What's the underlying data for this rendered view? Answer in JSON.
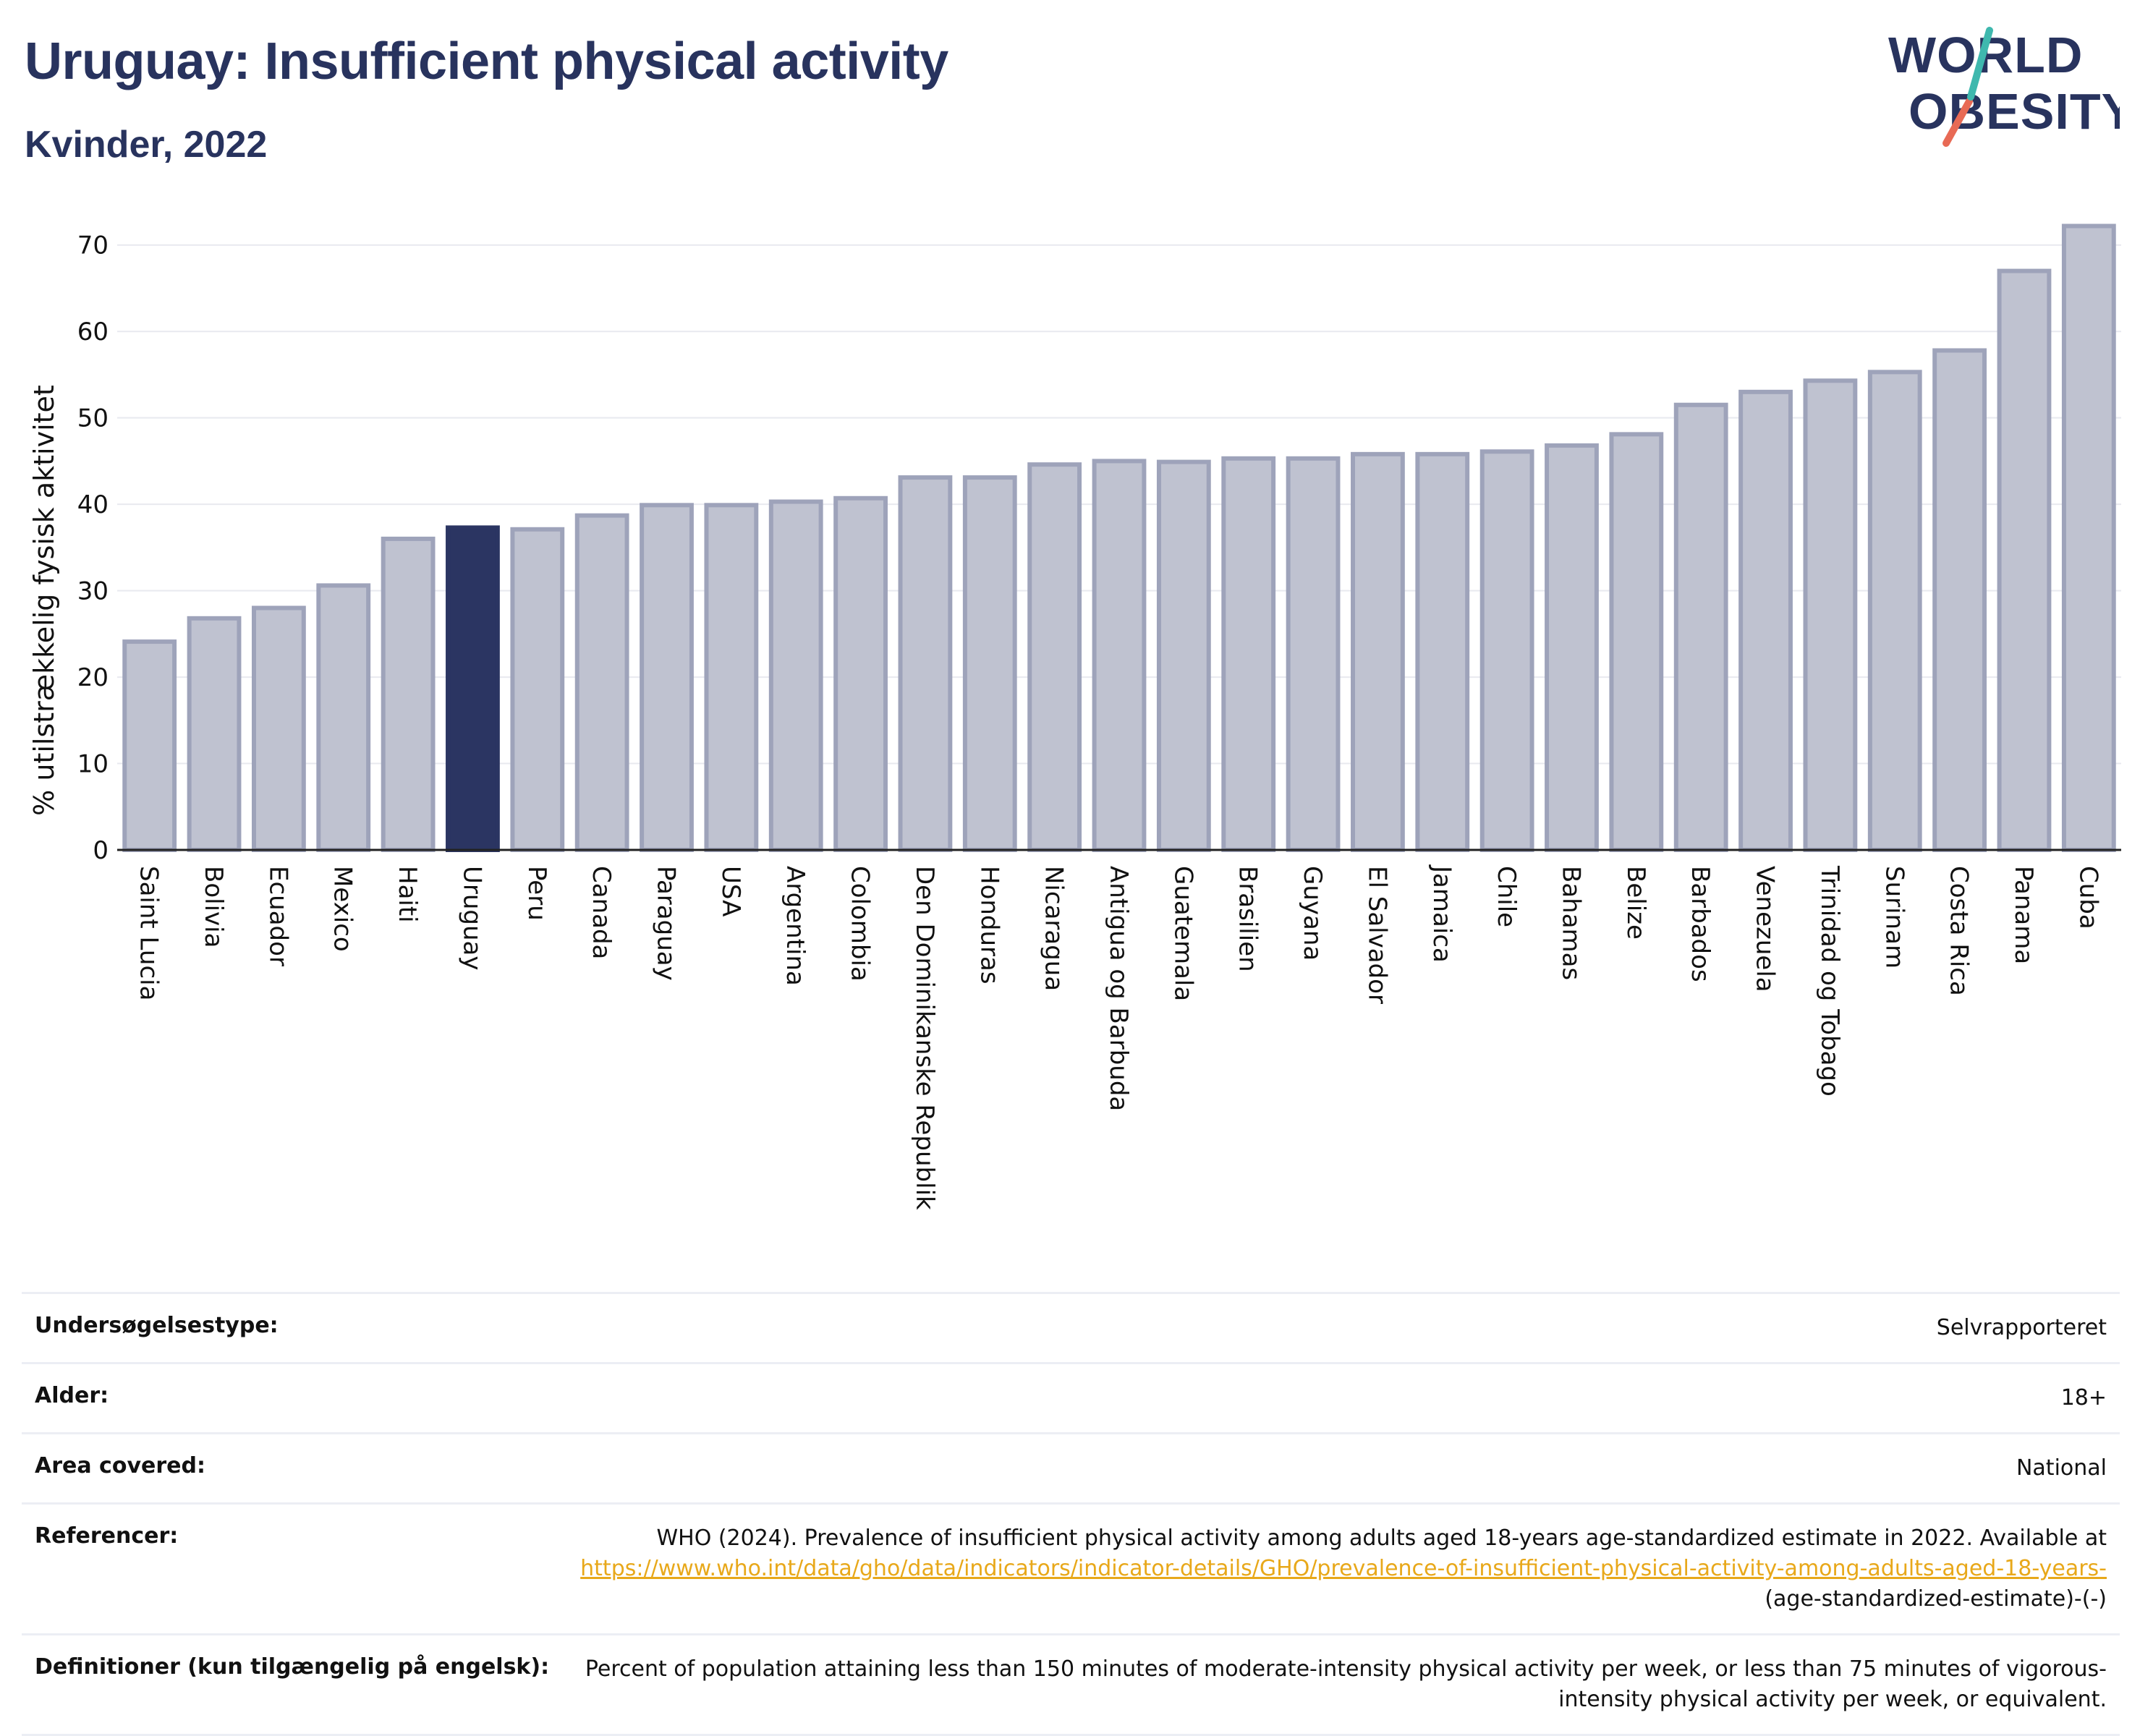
{
  "header": {
    "title": "Uruguay: Insufficient physical activity",
    "subtitle": "Kvinder, 2022"
  },
  "logo": {
    "line1": "WORLD",
    "line2": "OBESITY"
  },
  "colors": {
    "bar": "#bfc2d0",
    "bar_edge": "#9ea3ba",
    "highlight": "#2b3562",
    "axis": "#222222",
    "grid": "#e8e9ef"
  },
  "chart_data": {
    "type": "bar",
    "ylabel": "% utilstrækkelig fysisk aktivitet",
    "ylim": [
      0,
      75
    ],
    "yticks": [
      0,
      10,
      20,
      30,
      40,
      50,
      60,
      70
    ],
    "grid": true,
    "highlight": "Uruguay",
    "categories": [
      "Saint Lucia",
      "Bolivia",
      "Ecuador",
      "Mexico",
      "Haiti",
      "Uruguay",
      "Peru",
      "Canada",
      "Paraguay",
      "USA",
      "Argentina",
      "Colombia",
      "Den Dominikanske Republik",
      "Honduras",
      "Nicaragua",
      "Antigua og Barbuda",
      "Guatemala",
      "Brasilien",
      "Guyana",
      "El Salvador",
      "Jamaica",
      "Chile",
      "Bahamas",
      "Belize",
      "Barbados",
      "Venezuela",
      "Trinidad og Tobago",
      "Surinam",
      "Costa Rica",
      "Panama",
      "Cuba"
    ],
    "values": [
      24.1,
      26.8,
      28.0,
      30.6,
      36.0,
      37.3,
      37.1,
      38.7,
      39.9,
      39.9,
      40.3,
      40.7,
      43.1,
      43.1,
      44.6,
      45.0,
      44.9,
      45.3,
      45.3,
      45.8,
      45.8,
      46.1,
      46.8,
      48.1,
      51.5,
      53.0,
      54.3,
      55.3,
      57.8,
      67.0,
      72.2
    ]
  },
  "meta": {
    "rows": [
      {
        "key": "Undersøgelsestype:",
        "value": "Selvrapporteret"
      },
      {
        "key": "Alder:",
        "value": "18+"
      },
      {
        "key": "Area covered:",
        "value": "National"
      }
    ],
    "references": {
      "key": "Referencer:",
      "text": "WHO (2024). Prevalence of insufficient physical activity among adults aged 18-years age-standardized estimate in 2022. Available at",
      "link_text": "https://www.who.int/data/gho/data/indicators/indicator-details/GHO/prevalence-of-insufficient-physical-activity-among-adults-aged-18-years-",
      "suffix": "(age-standardized-estimate)-(-)"
    },
    "definitions": {
      "key": "Definitioner (kun tilgængelig på engelsk):",
      "value": "Percent of population attaining less than 150 minutes of moderate-intensity physical activity per week, or less than 75 minutes of vigorous-intensity physical activity per week, or equivalent."
    }
  }
}
